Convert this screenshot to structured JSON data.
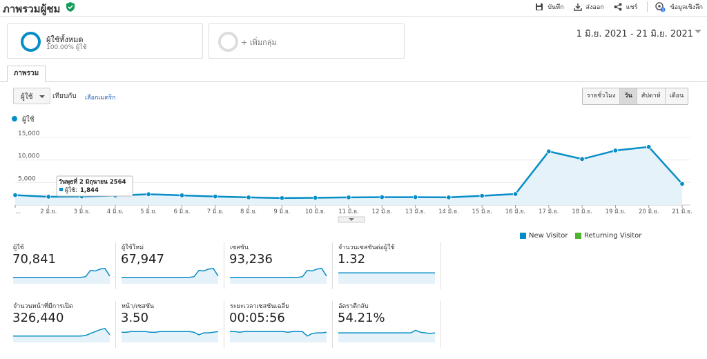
{
  "header": {
    "title": "ภาพรวมผู้ชม",
    "actions": [
      {
        "label": "บันทึก",
        "icon": "save-icon"
      },
      {
        "label": "ส่งออก",
        "icon": "export-icon"
      },
      {
        "label": "แชร์",
        "icon": "share-icon"
      },
      {
        "label": "ข้อมูลเชิงลึก",
        "icon": "insights-icon",
        "badge": "3"
      }
    ]
  },
  "segments": {
    "active": {
      "name": "ผู้ใช้ทั้งหมด",
      "sub": "100.00% ผู้ใช้"
    },
    "add": "+ เพิ่มกลุ่ม"
  },
  "date_range": "1 มิ.ย. 2021 - 21 มิ.ย. 2021",
  "tab": "ภาพรวม",
  "controls": {
    "metric": "ผู้ใช้",
    "compare_label": "เทียบกับ",
    "compare_link": "เลือกเมตริก",
    "granularity": [
      "รายชั่วโมง",
      "วัน",
      "สัปดาห์",
      "เดือน"
    ],
    "granularity_active": "วัน"
  },
  "chart_legend": "ผู้ใช้",
  "colors": {
    "line": "#058dc7",
    "fill": "#e6f2f9",
    "returning": "#50b432"
  },
  "chart_data": {
    "type": "area",
    "ylabel": "",
    "y_ticks": [
      "5,000",
      "10,000",
      "15,000"
    ],
    "ylim": [
      0,
      17000
    ],
    "x_labels": [
      "...",
      "2 มิ.ย.",
      "3 มิ.ย.",
      "4 มิ.ย.",
      "5 มิ.ย.",
      "6 มิ.ย.",
      "7 มิ.ย.",
      "8 มิ.ย.",
      "9 มิ.ย.",
      "10 มิ.ย.",
      "11 มิ.ย.",
      "12 มิ.ย.",
      "13 มิ.ย.",
      "14 มิ.ย.",
      "15 มิ.ย.",
      "16 มิ.ย.",
      "17 มิ.ย.",
      "18 มิ.ย.",
      "19 มิ.ย.",
      "20 มิ.ย.",
      "21 มิ.ย."
    ],
    "series": [
      {
        "name": "ผู้ใช้",
        "values": [
          2200,
          1844,
          1900,
          2100,
          2400,
          2150,
          1900,
          1700,
          1550,
          1600,
          1700,
          1750,
          1750,
          1700,
          2050,
          2450,
          11900,
          10200,
          12100,
          12900,
          4700
        ]
      }
    ],
    "tooltip": {
      "title": "วันพุธที่ 2 มิถุนายน 2564",
      "label": "ผู้ใช้:",
      "value": "1,844"
    }
  },
  "visitor_legend": [
    "New Visitor",
    "Returning Visitor"
  ],
  "tiles": [
    {
      "label": "ผู้ใช้",
      "value": "70,841",
      "spark": [
        10,
        10,
        10,
        10,
        10,
        10,
        10,
        10,
        10,
        10,
        10,
        10,
        10,
        10,
        10,
        11,
        21,
        20,
        23,
        24,
        12
      ]
    },
    {
      "label": "ผู้ใช้ใหม่",
      "value": "67,947",
      "spark": [
        10,
        10,
        10,
        10,
        10,
        10,
        10,
        10,
        10,
        10,
        10,
        10,
        10,
        10,
        10,
        11,
        21,
        20,
        23,
        24,
        12
      ]
    },
    {
      "label": "เซสชัน",
      "value": "93,236",
      "spark": [
        10,
        10,
        10,
        10,
        10,
        10,
        10,
        10,
        10,
        10,
        10,
        10,
        10,
        10,
        10,
        11,
        21,
        20,
        23,
        24,
        12
      ]
    },
    {
      "label": "จำนวนเซสชันต่อผู้ใช้",
      "value": "1.32",
      "spark": [
        17,
        17,
        17,
        17,
        17,
        17,
        17,
        17,
        17,
        17,
        17,
        17,
        17,
        17,
        17,
        17,
        17,
        17,
        17,
        17,
        17
      ]
    },
    {
      "label": "จำนวนหน้าที่มีการเปิด",
      "value": "326,440",
      "spark": [
        10,
        10,
        10,
        10,
        10,
        10,
        10,
        10,
        10,
        10,
        10,
        10,
        10,
        10,
        10,
        11,
        14,
        17,
        20,
        22,
        12
      ]
    },
    {
      "label": "หน้า/เซสชัน",
      "value": "3.50",
      "spark": [
        16,
        16,
        17,
        17,
        17,
        17,
        16,
        16,
        17,
        17,
        17,
        17,
        17,
        17,
        17,
        16,
        12,
        15,
        15,
        16,
        17
      ]
    },
    {
      "label": "ระยะเวลาเซสชันเฉลี่ย",
      "value": "00:05:56",
      "spark": [
        17,
        17,
        16,
        17,
        17,
        17,
        17,
        17,
        17,
        17,
        17,
        17,
        16,
        17,
        17,
        17,
        10,
        14,
        15,
        15,
        16
      ]
    },
    {
      "label": "อัตราตีกลับ",
      "value": "54.21%",
      "spark": [
        15,
        15,
        15,
        15,
        15,
        15,
        15,
        15,
        15,
        15,
        15,
        15,
        15,
        15,
        15,
        15,
        19,
        16,
        15,
        14,
        15
      ]
    }
  ]
}
